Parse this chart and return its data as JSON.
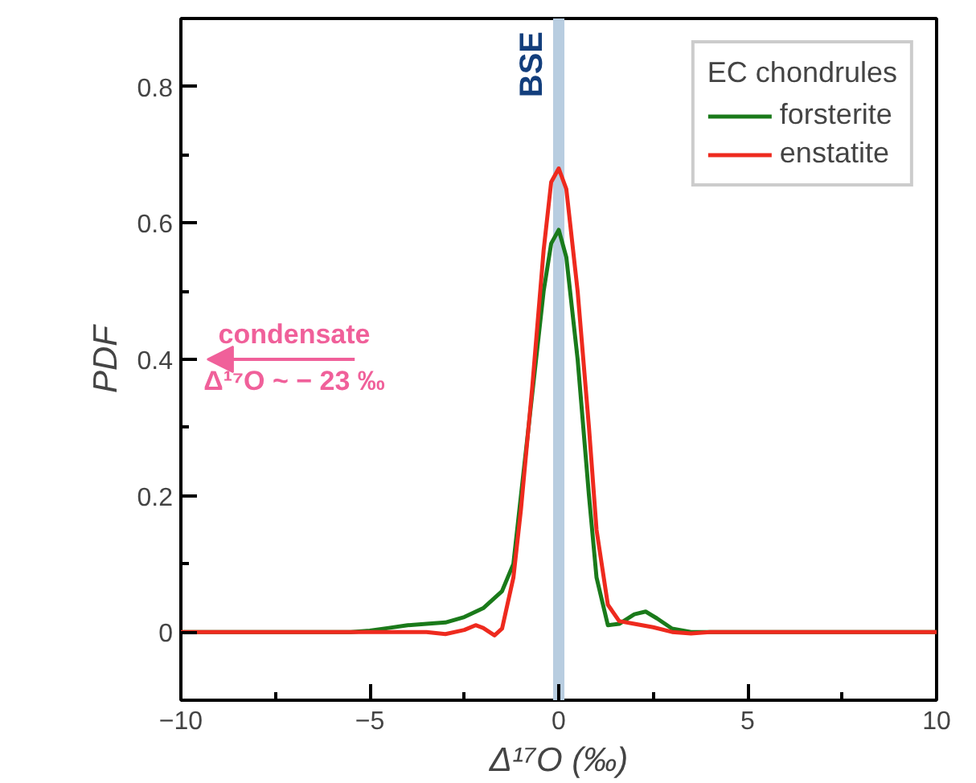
{
  "chart_data": {
    "type": "line",
    "xlabel": "Δ¹⁷O (‰)",
    "ylabel": "PDF",
    "legend_title": "EC chondrules",
    "legend": "top right",
    "xlim": [
      -10,
      10
    ],
    "ylim": [
      -0.1,
      0.9
    ],
    "xticks": [
      -10,
      -5,
      0,
      5,
      10
    ],
    "yticks": [
      0,
      0.2,
      0.4,
      0.6,
      0.8
    ],
    "grid": false,
    "line_style": "solid",
    "marker": "none",
    "bands": [
      {
        "axis": "x",
        "from": -0.15,
        "to": 0.15,
        "label": "BSE",
        "color": "#b8cde0"
      }
    ],
    "annotations": [
      "condensate",
      "Δ¹⁷O ~ − 23 ‰"
    ],
    "series": [
      {
        "name": "forsterite",
        "color": "#1a7a1a",
        "x": [
          -10,
          -6,
          -5.5,
          -5,
          -4.5,
          -4,
          -3.5,
          -3,
          -2.5,
          -2,
          -1.5,
          -1.2,
          -1,
          -0.7,
          -0.4,
          -0.2,
          0,
          0.2,
          0.5,
          0.8,
          1,
          1.3,
          1.6,
          2,
          2.3,
          2.6,
          3,
          3.5,
          4,
          10
        ],
        "values": [
          0,
          0,
          0,
          0.002,
          0.006,
          0.01,
          0.012,
          0.014,
          0.022,
          0.035,
          0.06,
          0.1,
          0.2,
          0.35,
          0.5,
          0.57,
          0.59,
          0.55,
          0.4,
          0.2,
          0.08,
          0.01,
          0.012,
          0.026,
          0.03,
          0.02,
          0.005,
          0,
          0,
          0
        ]
      },
      {
        "name": "enstatite",
        "color": "#ee2a1e",
        "x": [
          -10,
          -4,
          -3.5,
          -3,
          -2.5,
          -2.2,
          -2,
          -1.7,
          -1.5,
          -1.2,
          -1,
          -0.7,
          -0.4,
          -0.2,
          0,
          0.2,
          0.5,
          0.8,
          1,
          1.3,
          1.6,
          2,
          2.5,
          3,
          3.5,
          4,
          10
        ],
        "values": [
          0,
          0,
          0,
          -0.003,
          0.003,
          0.01,
          0.006,
          -0.005,
          0.005,
          0.08,
          0.18,
          0.36,
          0.56,
          0.66,
          0.68,
          0.65,
          0.5,
          0.3,
          0.15,
          0.04,
          0.016,
          0.012,
          0.007,
          0,
          -0.002,
          0,
          0
        ]
      }
    ]
  }
}
